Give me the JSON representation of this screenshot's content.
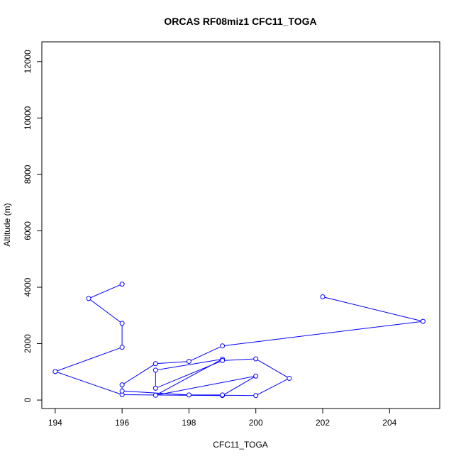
{
  "chart_data": {
    "type": "line",
    "title": "ORCAS RF08miz1 CFC11_TOGA",
    "xlabel": "CFC11_TOGA",
    "ylabel": "Altitude (m)",
    "xlim": [
      193.6,
      205.5
    ],
    "ylim": [
      -300,
      12700
    ],
    "xticks": [
      194,
      196,
      198,
      200,
      202,
      204
    ],
    "yticks": [
      0,
      2000,
      4000,
      6000,
      8000,
      10000,
      12000
    ],
    "grid": false,
    "legend": "none",
    "colors": {
      "series": "#0000ff",
      "frame": "#000000"
    },
    "series": [
      {
        "x": [
          196,
          195,
          196,
          196,
          194,
          196,
          199,
          200,
          197,
          199,
          197,
          197,
          199,
          200,
          201,
          200,
          199,
          199,
          198,
          196,
          196,
          197,
          198,
          199,
          205,
          202
        ],
        "y": [
          4110,
          3600,
          2720,
          1870,
          1010,
          190,
          160,
          850,
          170,
          1450,
          1060,
          420,
          1400,
          1460,
          770,
          160,
          170,
          180,
          180,
          320,
          540,
          1290,
          1370,
          1920,
          2790,
          3660
        ]
      }
    ]
  }
}
